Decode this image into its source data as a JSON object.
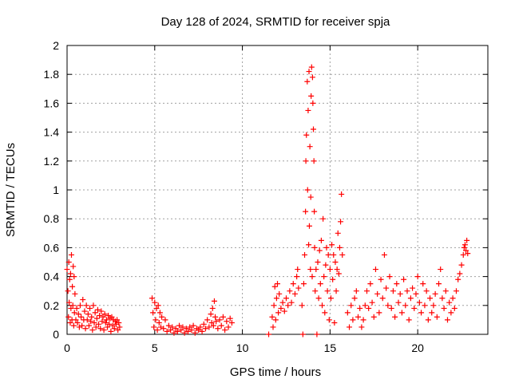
{
  "chart_data": {
    "type": "scatter",
    "title": "Day 128 of 2024, SRMTID for receiver spja",
    "xlabel": "GPS time / hours",
    "ylabel": "SRMTID / TECUs",
    "xlim": [
      0,
      24
    ],
    "ylim": [
      0,
      2
    ],
    "x_ticks": [
      0,
      5,
      10,
      15,
      20
    ],
    "x_tick_labels": [
      "0",
      "5",
      "10",
      "15",
      "20"
    ],
    "y_ticks": [
      0,
      0.2,
      0.4,
      0.6,
      0.8,
      1,
      1.2,
      1.4,
      1.6,
      1.8,
      2
    ],
    "y_tick_labels": [
      "0",
      "0.2",
      "0.4",
      "0.6",
      "0.8",
      "1",
      "1.2",
      "1.4",
      "1.6",
      "1.8",
      "2"
    ],
    "grid": true,
    "marker": "+",
    "color": "#ff0000",
    "points": [
      [
        0.0,
        0.45
      ],
      [
        0.05,
        0.3
      ],
      [
        0.08,
        0.12
      ],
      [
        0.1,
        0.5
      ],
      [
        0.12,
        0.22
      ],
      [
        0.15,
        0.38
      ],
      [
        0.18,
        0.08
      ],
      [
        0.2,
        0.42
      ],
      [
        0.22,
        0.18
      ],
      [
        0.25,
        0.55
      ],
      [
        0.28,
        0.1
      ],
      [
        0.3,
        0.33
      ],
      [
        0.33,
        0.2
      ],
      [
        0.35,
        0.47
      ],
      [
        0.38,
        0.06
      ],
      [
        0.4,
        0.4
      ],
      [
        0.42,
        0.15
      ],
      [
        0.45,
        0.28
      ],
      [
        0.5,
        0.1
      ],
      [
        0.55,
        0.18
      ],
      [
        0.6,
        0.08
      ],
      [
        0.65,
        0.14
      ],
      [
        0.7,
        0.05
      ],
      [
        0.75,
        0.2
      ],
      [
        0.8,
        0.12
      ],
      [
        0.85,
        0.06
      ],
      [
        0.9,
        0.24
      ],
      [
        0.95,
        0.1
      ],
      [
        1.0,
        0.16
      ],
      [
        1.05,
        0.04
      ],
      [
        1.1,
        0.2
      ],
      [
        1.15,
        0.1
      ],
      [
        1.2,
        0.14
      ],
      [
        1.25,
        0.06
      ],
      [
        1.3,
        0.18
      ],
      [
        1.35,
        0.09
      ],
      [
        1.4,
        0.12
      ],
      [
        1.45,
        0.03
      ],
      [
        1.5,
        0.2
      ],
      [
        1.55,
        0.08
      ],
      [
        1.6,
        0.15
      ],
      [
        1.65,
        0.05
      ],
      [
        1.7,
        0.11
      ],
      [
        1.75,
        0.17
      ],
      [
        1.8,
        0.07
      ],
      [
        1.85,
        0.13
      ],
      [
        1.9,
        0.04
      ],
      [
        1.95,
        0.16
      ],
      [
        2.0,
        0.09
      ],
      [
        2.05,
        0.12
      ],
      [
        2.1,
        0.03
      ],
      [
        2.15,
        0.14
      ],
      [
        2.2,
        0.08
      ],
      [
        2.25,
        0.1
      ],
      [
        2.3,
        0.05
      ],
      [
        2.35,
        0.13
      ],
      [
        2.4,
        0.07
      ],
      [
        2.45,
        0.11
      ],
      [
        2.5,
        0.02
      ],
      [
        2.55,
        0.12
      ],
      [
        2.6,
        0.06
      ],
      [
        2.65,
        0.1
      ],
      [
        2.7,
        0.04
      ],
      [
        2.75,
        0.09
      ],
      [
        2.8,
        0.07
      ],
      [
        2.85,
        0.1
      ],
      [
        2.9,
        0.03
      ],
      [
        2.95,
        0.08
      ],
      [
        3.0,
        0.05
      ],
      [
        4.85,
        0.25
      ],
      [
        4.9,
        0.15
      ],
      [
        4.95,
        0.05
      ],
      [
        5.0,
        0.22
      ],
      [
        5.05,
        0.1
      ],
      [
        5.1,
        0.18
      ],
      [
        5.15,
        0.03
      ],
      [
        5.2,
        0.2
      ],
      [
        5.25,
        0.08
      ],
      [
        5.3,
        0.15
      ],
      [
        5.35,
        0.05
      ],
      [
        5.4,
        0.12
      ],
      [
        5.5,
        0.04
      ],
      [
        5.6,
        0.1
      ],
      [
        5.7,
        0.02
      ],
      [
        5.8,
        0.06
      ],
      [
        5.9,
        0.03
      ],
      [
        6.0,
        0.05
      ],
      [
        6.1,
        0.01
      ],
      [
        6.2,
        0.04
      ],
      [
        6.3,
        0.02
      ],
      [
        6.4,
        0.06
      ],
      [
        6.5,
        0.03
      ],
      [
        6.6,
        0.05
      ],
      [
        6.7,
        0.01
      ],
      [
        6.8,
        0.04
      ],
      [
        6.9,
        0.02
      ],
      [
        7.0,
        0.05
      ],
      [
        7.1,
        0.03
      ],
      [
        7.2,
        0.06
      ],
      [
        7.3,
        0.01
      ],
      [
        7.4,
        0.04
      ],
      [
        7.5,
        0.03
      ],
      [
        7.6,
        0.05
      ],
      [
        7.7,
        0.02
      ],
      [
        7.8,
        0.07
      ],
      [
        7.9,
        0.04
      ],
      [
        8.0,
        0.1
      ],
      [
        8.1,
        0.05
      ],
      [
        8.2,
        0.14
      ],
      [
        8.25,
        0.08
      ],
      [
        8.3,
        0.18
      ],
      [
        8.35,
        0.06
      ],
      [
        8.4,
        0.23
      ],
      [
        8.45,
        0.12
      ],
      [
        8.5,
        0.09
      ],
      [
        8.6,
        0.04
      ],
      [
        8.7,
        0.1
      ],
      [
        8.8,
        0.06
      ],
      [
        8.9,
        0.12
      ],
      [
        9.0,
        0.03
      ],
      [
        9.1,
        0.09
      ],
      [
        9.2,
        0.05
      ],
      [
        9.3,
        0.11
      ],
      [
        9.4,
        0.08
      ],
      [
        11.5,
        0.0
      ],
      [
        11.7,
        0.12
      ],
      [
        11.75,
        0.05
      ],
      [
        11.8,
        0.2
      ],
      [
        11.85,
        0.33
      ],
      [
        11.9,
        0.1
      ],
      [
        11.95,
        0.25
      ],
      [
        12.0,
        0.35
      ],
      [
        12.05,
        0.15
      ],
      [
        12.1,
        0.28
      ],
      [
        12.2,
        0.18
      ],
      [
        12.3,
        0.22
      ],
      [
        12.4,
        0.16
      ],
      [
        12.5,
        0.25
      ],
      [
        12.6,
        0.2
      ],
      [
        12.7,
        0.3
      ],
      [
        12.8,
        0.22
      ],
      [
        12.9,
        0.35
      ],
      [
        13.0,
        0.28
      ],
      [
        13.1,
        0.4
      ],
      [
        13.15,
        0.45
      ],
      [
        13.2,
        0.32
      ],
      [
        13.4,
        0.2
      ],
      [
        13.45,
        0.0
      ],
      [
        13.5,
        0.35
      ],
      [
        13.55,
        0.55
      ],
      [
        13.6,
        0.85
      ],
      [
        13.62,
        1.2
      ],
      [
        13.65,
        1.38
      ],
      [
        13.7,
        1.75
      ],
      [
        13.72,
        1.0
      ],
      [
        13.75,
        1.55
      ],
      [
        13.78,
        0.62
      ],
      [
        13.8,
        1.82
      ],
      [
        13.82,
        0.75
      ],
      [
        13.85,
        1.3
      ],
      [
        13.88,
        0.45
      ],
      [
        13.9,
        0.95
      ],
      [
        13.92,
        1.65
      ],
      [
        13.95,
        1.85
      ],
      [
        13.98,
        0.4
      ],
      [
        14.0,
        1.78
      ],
      [
        14.02,
        1.6
      ],
      [
        14.05,
        1.42
      ],
      [
        14.08,
        1.2
      ],
      [
        14.1,
        0.85
      ],
      [
        14.12,
        0.6
      ],
      [
        14.15,
        0.3
      ],
      [
        14.2,
        0.45
      ],
      [
        14.25,
        0.0
      ],
      [
        14.3,
        0.5
      ],
      [
        14.35,
        0.25
      ],
      [
        14.4,
        0.58
      ],
      [
        14.45,
        0.35
      ],
      [
        14.5,
        0.65
      ],
      [
        14.55,
        0.2
      ],
      [
        14.6,
        0.8
      ],
      [
        14.65,
        0.4
      ],
      [
        14.7,
        0.15
      ],
      [
        14.75,
        0.48
      ],
      [
        14.8,
        0.6
      ],
      [
        14.85,
        0.3
      ],
      [
        14.9,
        0.55
      ],
      [
        14.95,
        0.1
      ],
      [
        15.0,
        0.45
      ],
      [
        15.05,
        0.25
      ],
      [
        15.1,
        0.62
      ],
      [
        15.15,
        0.38
      ],
      [
        15.2,
        0.55
      ],
      [
        15.25,
        0.08
      ],
      [
        15.3,
        0.5
      ],
      [
        15.35,
        0.3
      ],
      [
        15.4,
        0.45
      ],
      [
        15.45,
        0.7
      ],
      [
        15.5,
        0.42
      ],
      [
        15.55,
        0.6
      ],
      [
        15.6,
        0.78
      ],
      [
        15.65,
        0.97
      ],
      [
        15.7,
        0.55
      ],
      [
        16.0,
        0.15
      ],
      [
        16.1,
        0.05
      ],
      [
        16.2,
        0.2
      ],
      [
        16.3,
        0.1
      ],
      [
        16.4,
        0.25
      ],
      [
        16.5,
        0.3
      ],
      [
        16.6,
        0.12
      ],
      [
        16.7,
        0.18
      ],
      [
        16.8,
        0.05
      ],
      [
        16.9,
        0.1
      ],
      [
        17.0,
        0.2
      ],
      [
        17.1,
        0.3
      ],
      [
        17.2,
        0.18
      ],
      [
        17.3,
        0.35
      ],
      [
        17.4,
        0.22
      ],
      [
        17.5,
        0.12
      ],
      [
        17.6,
        0.45
      ],
      [
        17.7,
        0.28
      ],
      [
        17.8,
        0.15
      ],
      [
        17.9,
        0.38
      ],
      [
        18.0,
        0.25
      ],
      [
        18.1,
        0.55
      ],
      [
        18.2,
        0.32
      ],
      [
        18.3,
        0.2
      ],
      [
        18.4,
        0.4
      ],
      [
        18.5,
        0.18
      ],
      [
        18.6,
        0.3
      ],
      [
        18.7,
        0.12
      ],
      [
        18.8,
        0.35
      ],
      [
        18.9,
        0.22
      ],
      [
        19.0,
        0.28
      ],
      [
        19.1,
        0.15
      ],
      [
        19.2,
        0.38
      ],
      [
        19.3,
        0.2
      ],
      [
        19.4,
        0.3
      ],
      [
        19.5,
        0.1
      ],
      [
        19.6,
        0.25
      ],
      [
        19.7,
        0.32
      ],
      [
        19.8,
        0.18
      ],
      [
        19.9,
        0.28
      ],
      [
        20.0,
        0.4
      ],
      [
        20.1,
        0.22
      ],
      [
        20.2,
        0.15
      ],
      [
        20.3,
        0.35
      ],
      [
        20.4,
        0.2
      ],
      [
        20.5,
        0.3
      ],
      [
        20.6,
        0.1
      ],
      [
        20.7,
        0.25
      ],
      [
        20.8,
        0.15
      ],
      [
        20.9,
        0.2
      ],
      [
        21.0,
        0.28
      ],
      [
        21.1,
        0.12
      ],
      [
        21.2,
        0.35
      ],
      [
        21.3,
        0.45
      ],
      [
        21.4,
        0.25
      ],
      [
        21.5,
        0.18
      ],
      [
        21.6,
        0.3
      ],
      [
        21.7,
        0.1
      ],
      [
        21.8,
        0.22
      ],
      [
        21.9,
        0.15
      ],
      [
        22.0,
        0.25
      ],
      [
        22.1,
        0.18
      ],
      [
        22.2,
        0.3
      ],
      [
        22.3,
        0.38
      ],
      [
        22.4,
        0.42
      ],
      [
        22.5,
        0.48
      ],
      [
        22.6,
        0.55
      ],
      [
        22.65,
        0.6
      ],
      [
        22.7,
        0.62
      ],
      [
        22.75,
        0.58
      ],
      [
        22.8,
        0.65
      ],
      [
        22.85,
        0.56
      ]
    ]
  }
}
